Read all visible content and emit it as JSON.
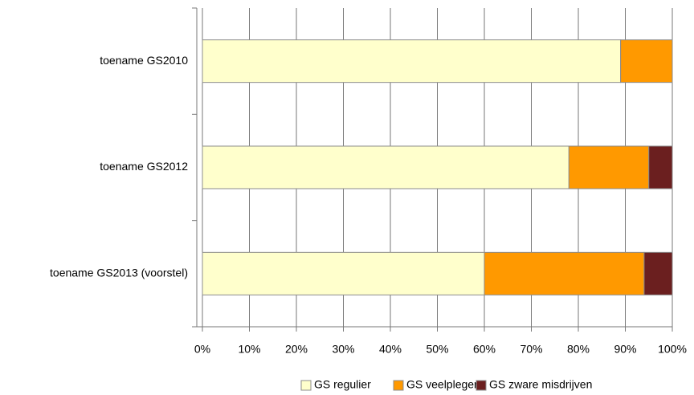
{
  "chart_data": {
    "type": "stacked-bar-horizontal",
    "categories": [
      "toename GS2010",
      "toename GS2012",
      "toename GS2013 (voorstel)"
    ],
    "series": [
      {
        "name": "GS regulier",
        "color": "#ffffcc",
        "values": [
          89,
          78,
          60
        ]
      },
      {
        "name": "GS veelpleger",
        "color": "#ff9900",
        "values": [
          11,
          17,
          34
        ]
      },
      {
        "name": "GS zware misdrijven",
        "color": "#6b1f1f",
        "values": [
          0,
          5,
          6
        ]
      }
    ],
    "xlim": [
      0,
      100
    ],
    "xticks": [
      {
        "value": 0,
        "label": "0%"
      },
      {
        "value": 10,
        "label": "10%"
      },
      {
        "value": 20,
        "label": "20%"
      },
      {
        "value": 30,
        "label": "30%"
      },
      {
        "value": 40,
        "label": "40%"
      },
      {
        "value": 50,
        "label": "50%"
      },
      {
        "value": 60,
        "label": "60%"
      },
      {
        "value": 70,
        "label": "70%"
      },
      {
        "value": 80,
        "label": "80%"
      },
      {
        "value": 90,
        "label": "90%"
      },
      {
        "value": 100,
        "label": "100%"
      }
    ],
    "grid": true,
    "legend": "bottom"
  }
}
